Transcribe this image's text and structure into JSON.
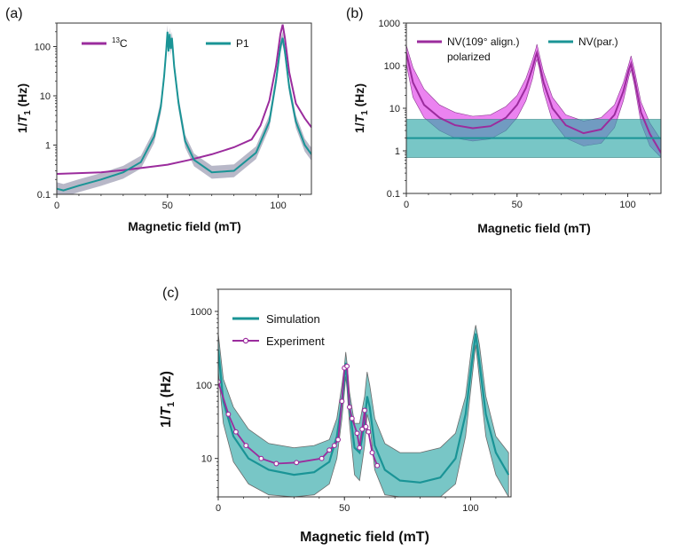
{
  "colors": {
    "c13": "#9B2C9D",
    "p1": "#1A9496",
    "teal_fill": "#2FA8A8",
    "magenta_fill": "#E040E8",
    "grey_band": "#7E7E9A"
  },
  "chart_data": [
    {
      "id": "a",
      "type": "line",
      "panel_label": "(a)",
      "xlabel": "Magnetic field (mT)",
      "ylabel_main": "1/",
      "ylabel_italic": "T",
      "ylabel_sub": "1",
      "ylabel_unit": " (Hz)",
      "xlim": [
        0,
        115
      ],
      "ylim": [
        0.1,
        300
      ],
      "yscale": "log",
      "xticks": [
        0,
        50,
        100
      ],
      "xtick_labels": [
        "0",
        "50",
        "100"
      ],
      "yticks": [
        0.1,
        1,
        10,
        100
      ],
      "ytick_labels": [
        "0.1",
        "1",
        "10",
        "100"
      ],
      "legend": {
        "placement": "top",
        "entries": [
          {
            "name_super": "13",
            "name": "C",
            "color_key": "c13"
          },
          {
            "name_super": "",
            "name": "P1",
            "color_key": "p1"
          }
        ]
      },
      "series": [
        {
          "name": "13C",
          "color_key": "c13",
          "x": [
            0,
            10,
            20,
            30,
            40,
            50,
            60,
            70,
            80,
            88,
            92,
            96,
            99,
            101,
            102,
            103,
            105,
            108,
            112,
            115
          ],
          "y": [
            0.26,
            0.27,
            0.28,
            0.31,
            0.35,
            0.4,
            0.5,
            0.65,
            0.9,
            1.3,
            2.5,
            8,
            40,
            180,
            280,
            150,
            30,
            7,
            3.5,
            2.3
          ]
        },
        {
          "name": "P1",
          "color_key": "p1",
          "x": [
            0,
            3,
            10,
            20,
            30,
            38,
            44,
            47,
            48.5,
            49.5,
            50,
            50.5,
            51,
            51.5,
            52,
            53,
            55,
            58,
            62,
            70,
            80,
            90,
            96,
            99,
            101,
            102,
            103,
            105,
            108,
            112,
            115
          ],
          "y": [
            0.13,
            0.12,
            0.15,
            0.2,
            0.28,
            0.45,
            1.5,
            6,
            25,
            90,
            200,
            80,
            180,
            90,
            150,
            40,
            7,
            1.2,
            0.5,
            0.28,
            0.3,
            0.7,
            3,
            20,
            100,
            150,
            80,
            15,
            3,
            1,
            0.65
          ]
        }
      ]
    },
    {
      "id": "b",
      "type": "line",
      "panel_label": "(b)",
      "xlabel": "Magnetic field (mT)",
      "ylabel_main": "1/",
      "ylabel_italic": "T",
      "ylabel_sub": "1",
      "ylabel_unit": " (Hz)",
      "xlim": [
        0,
        115
      ],
      "ylim": [
        0.1,
        1000
      ],
      "yscale": "log",
      "xticks": [
        0,
        50,
        100
      ],
      "xtick_labels": [
        "0",
        "50",
        "100"
      ],
      "yticks": [
        0.1,
        1,
        10,
        100,
        1000
      ],
      "ytick_labels": [
        "0.1",
        "1",
        "10",
        "100",
        "1000"
      ],
      "legend": {
        "placement": "top",
        "entries": [
          {
            "name": "NV(109° align.)",
            "name2": "polarized",
            "color_key": "c13"
          },
          {
            "name": "NV(par.)",
            "color_key": "p1"
          }
        ]
      },
      "series": [
        {
          "name": "NV(109° align.) polarized",
          "color_key": "c13",
          "x": [
            0,
            3,
            8,
            15,
            22,
            30,
            38,
            45,
            50,
            54,
            57,
            58.5,
            59,
            60,
            62,
            66,
            72,
            80,
            88,
            94,
            98,
            100.5,
            101.5,
            103,
            106,
            110,
            115
          ],
          "y": [
            200,
            40,
            12,
            6,
            4,
            3.4,
            3.8,
            6,
            12,
            30,
            90,
            170,
            200,
            120,
            40,
            10,
            4,
            2.6,
            3.2,
            7,
            25,
            80,
            110,
            50,
            8,
            2.5,
            0.9
          ],
          "band_upper": [
            300,
            90,
            28,
            12,
            8,
            6.5,
            7,
            11,
            20,
            50,
            140,
            250,
            320,
            190,
            70,
            18,
            7,
            5,
            6,
            12,
            40,
            110,
            170,
            80,
            14,
            4.5,
            1.8
          ],
          "band_lower": [
            110,
            18,
            6,
            3,
            2,
            1.7,
            1.9,
            3,
            6,
            15,
            50,
            120,
            140,
            90,
            25,
            5,
            2,
            1.3,
            1.5,
            3.5,
            15,
            55,
            80,
            35,
            4.5,
            1.3,
            0.7
          ]
        },
        {
          "name": "NV(par.)",
          "color_key": "p1",
          "x": [
            0,
            115
          ],
          "y": [
            2,
            2
          ],
          "band_upper": [
            5.5,
            5.5
          ],
          "band_lower": [
            0.7,
            0.7
          ]
        }
      ]
    },
    {
      "id": "c",
      "type": "line",
      "panel_label": "(c)",
      "xlabel": "Magnetic field (mT)",
      "ylabel_main": "1/",
      "ylabel_italic": "T",
      "ylabel_sub": "1",
      "ylabel_unit": " (Hz)",
      "xlim": [
        0,
        116
      ],
      "ylim": [
        3,
        2000
      ],
      "yscale": "log",
      "xticks": [
        0,
        50,
        100
      ],
      "xtick_labels": [
        "0",
        "50",
        "100"
      ],
      "yticks": [
        10,
        100,
        1000
      ],
      "ytick_labels": [
        "10",
        "100",
        "1000"
      ],
      "legend": {
        "placement": "top-left",
        "entries": [
          {
            "name": "Simulation",
            "color_key": "p1",
            "marker": "none"
          },
          {
            "name": "Experiment",
            "color_key": "c13",
            "marker": "circle"
          }
        ]
      },
      "series": [
        {
          "name": "Simulation",
          "color_key": "p1",
          "x": [
            0,
            2,
            6,
            12,
            20,
            30,
            38,
            44,
            47,
            49,
            50,
            50.5,
            51,
            52,
            54,
            56,
            58,
            59,
            60,
            62,
            66,
            72,
            80,
            88,
            94,
            98,
            100.5,
            102,
            103.5,
            106,
            110,
            115
          ],
          "y": [
            300,
            60,
            20,
            10,
            7,
            6,
            6.5,
            9,
            20,
            60,
            120,
            200,
            130,
            50,
            14,
            12,
            30,
            70,
            50,
            15,
            7,
            5,
            4.7,
            5.5,
            10,
            40,
            200,
            500,
            200,
            40,
            12,
            6
          ],
          "band_upper": [
            500,
            120,
            50,
            25,
            16,
            14,
            15,
            18,
            35,
            100,
            180,
            280,
            200,
            80,
            30,
            30,
            70,
            150,
            100,
            35,
            16,
            12,
            12,
            14,
            22,
            70,
            350,
            650,
            350,
            70,
            20,
            12
          ],
          "band_lower": [
            150,
            30,
            9,
            4.5,
            3.2,
            3,
            3.2,
            4.5,
            10,
            35,
            80,
            130,
            90,
            30,
            6,
            5,
            15,
            40,
            30,
            7,
            3.2,
            3,
            3,
            3,
            4.5,
            20,
            120,
            350,
            120,
            20,
            6,
            3
          ]
        },
        {
          "name": "Experiment",
          "color_key": "c13",
          "x": [
            0,
            4,
            7,
            11,
            17,
            23,
            31,
            41,
            44,
            46,
            47.5,
            49,
            50,
            51,
            52,
            53,
            55,
            56,
            57,
            58,
            58.5,
            59.5,
            61,
            63
          ],
          "y": [
            110,
            40,
            23,
            15,
            10,
            8.5,
            8.8,
            10,
            13,
            15,
            18,
            60,
            170,
            180,
            50,
            35,
            22,
            14,
            25,
            45,
            27,
            23,
            12,
            8
          ]
        }
      ]
    }
  ]
}
